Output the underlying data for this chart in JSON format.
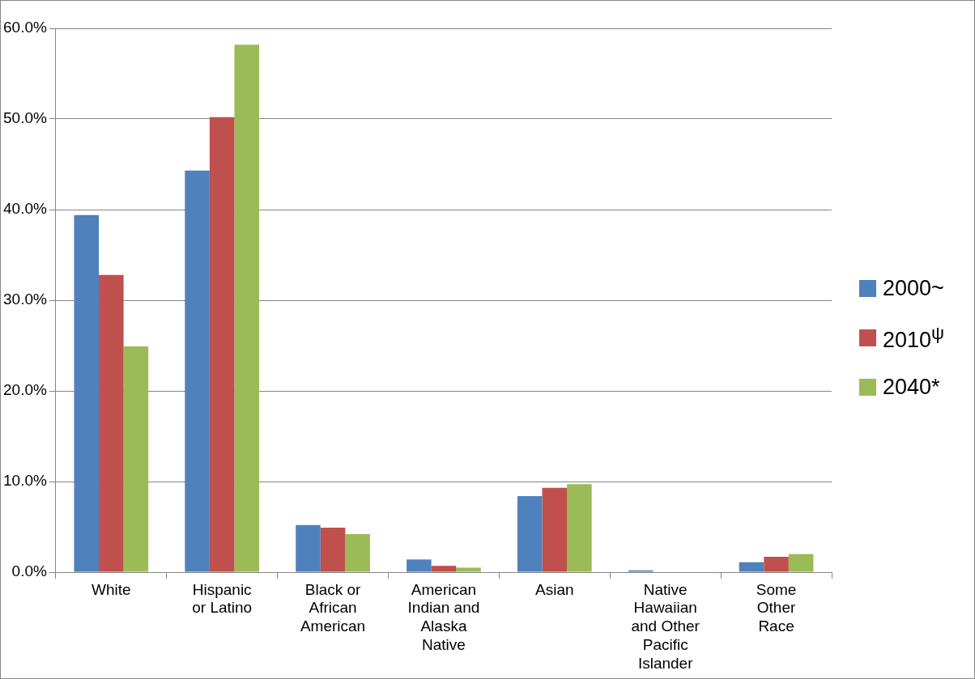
{
  "chart_data": {
    "type": "bar",
    "categories": [
      "White",
      "Hispanic or Latino",
      "Black or African American",
      "American Indian and Alaska Native",
      "Asian",
      "Native Hawaiian and Other Pacific Islander",
      "Some Other Race"
    ],
    "series": [
      {
        "name": "2000~",
        "color": "#4f81bd",
        "values": [
          39.4,
          44.3,
          5.2,
          1.4,
          8.4,
          0.2,
          1.1
        ]
      },
      {
        "name": "2010$^{ψ}$",
        "color": "#c0504d",
        "values": [
          32.8,
          50.2,
          4.9,
          0.7,
          9.3,
          0,
          1.7
        ]
      },
      {
        "name": "2040*",
        "color": "#9bbb59",
        "values": [
          24.9,
          58.2,
          4.2,
          0.5,
          9.7,
          0,
          2.0
        ]
      }
    ],
    "ylim": [
      0,
      60
    ],
    "yticks": [
      {
        "value": 0,
        "label": "0.0%"
      },
      {
        "value": 10,
        "label": "10.0%"
      },
      {
        "value": 20,
        "label": "20.0%"
      },
      {
        "value": 30,
        "label": "30.0%"
      },
      {
        "value": 40,
        "label": "40.0%"
      },
      {
        "value": 50,
        "label": "50.0%"
      },
      {
        "value": 60,
        "label": "60.0%"
      }
    ],
    "grid": "y",
    "legend": "right"
  }
}
